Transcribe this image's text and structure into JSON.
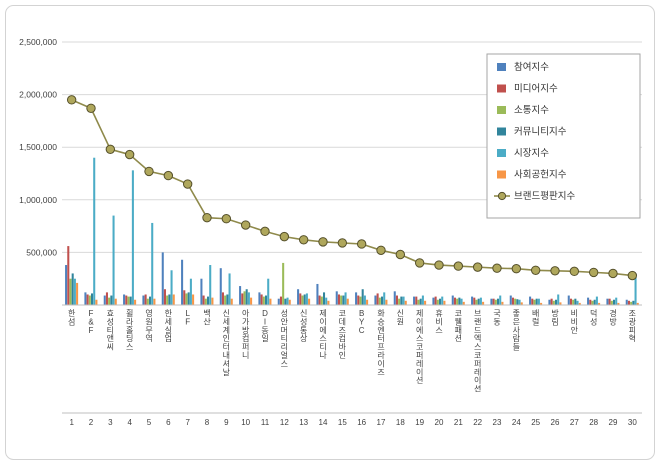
{
  "chart_data": {
    "type": "bar",
    "title": "",
    "categories": [
      "한섬",
      "F&F",
      "효성티앤씨",
      "휠라홀딩스",
      "영원무역",
      "한세실업",
      "LF",
      "백산",
      "신세계인터내셔날",
      "아가방컴퍼니",
      "DI동일",
      "성안머티리얼스",
      "신성통상",
      "제이에스티나",
      "코데즈컴바인",
      "BYC",
      "화승엔터프라이즈",
      "신원",
      "제이에스코퍼레이션",
      "휴비스",
      "코웰패션",
      "브랜드엑스코퍼레이션",
      "국동",
      "좋은사람들",
      "배럴",
      "방림",
      "비비안",
      "덕성",
      "경방",
      "조광피혁"
    ],
    "rank_labels": [
      "1",
      "2",
      "3",
      "4",
      "5",
      "6",
      "7",
      "8",
      "9",
      "10",
      "11",
      "12",
      "13",
      "14",
      "15",
      "16",
      "17",
      "18",
      "19",
      "20",
      "21",
      "22",
      "23",
      "24",
      "25",
      "26",
      "27",
      "28",
      "29",
      "30"
    ],
    "y_ticks": [
      {
        "value": 2500000,
        "label": "2,500,000"
      },
      {
        "value": 2000000,
        "label": "2,000,000"
      },
      {
        "value": 1500000,
        "label": "1,500,000"
      },
      {
        "value": 1000000,
        "label": "1,000,000"
      },
      {
        "value": 500000,
        "label": "500,000"
      }
    ],
    "ylim": [
      0,
      2500000
    ],
    "grid": true,
    "legend_position": "right-top",
    "series": [
      {
        "name": "참여지수",
        "color": "#4F81BD",
        "values": [
          380000,
          120000,
          90000,
          100000,
          90000,
          500000,
          430000,
          250000,
          350000,
          180000,
          120000,
          60000,
          150000,
          200000,
          130000,
          120000,
          90000,
          130000,
          80000,
          70000,
          90000,
          80000,
          60000,
          90000,
          80000,
          50000,
          90000,
          70000,
          60000,
          50000
        ]
      },
      {
        "name": "미디어지수",
        "color": "#C0504D",
        "values": [
          560000,
          100000,
          120000,
          90000,
          100000,
          150000,
          140000,
          90000,
          120000,
          110000,
          100000,
          80000,
          110000,
          90000,
          100000,
          90000,
          110000,
          90000,
          80000,
          80000,
          70000,
          70000,
          60000,
          70000,
          60000,
          60000,
          60000,
          50000,
          60000,
          40000
        ]
      },
      {
        "name": "소통지수",
        "color": "#9BBB59",
        "values": [
          250000,
          90000,
          70000,
          80000,
          60000,
          90000,
          110000,
          60000,
          90000,
          130000,
          80000,
          400000,
          90000,
          80000,
          90000,
          80000,
          70000,
          60000,
          50000,
          50000,
          60000,
          50000,
          50000,
          60000,
          50000,
          40000,
          50000,
          40000,
          40000,
          30000
        ]
      },
      {
        "name": "커뮤니티지수",
        "color": "#31859C",
        "values": [
          300000,
          110000,
          90000,
          80000,
          80000,
          100000,
          120000,
          80000,
          100000,
          150000,
          90000,
          60000,
          100000,
          120000,
          90000,
          150000,
          80000,
          80000,
          60000,
          60000,
          70000,
          60000,
          60000,
          55000,
          60000,
          50000,
          60000,
          50000,
          50000,
          40000
        ]
      },
      {
        "name": "시장지수",
        "color": "#4BACC6",
        "values": [
          250000,
          1400000,
          850000,
          1280000,
          780000,
          330000,
          250000,
          380000,
          300000,
          120000,
          250000,
          70000,
          110000,
          70000,
          120000,
          90000,
          120000,
          80000,
          90000,
          80000,
          60000,
          70000,
          90000,
          50000,
          60000,
          100000,
          40000,
          80000,
          70000,
          300000
        ]
      },
      {
        "name": "사회공헌지수",
        "color": "#F79646",
        "values": [
          210000,
          50000,
          60000,
          50000,
          60000,
          100000,
          100000,
          70000,
          60000,
          70000,
          60000,
          50000,
          60000,
          40000,
          60000,
          50000,
          50000,
          40000,
          40000,
          40000,
          30000,
          30000,
          30000,
          25000,
          20000,
          25000,
          20000,
          20000,
          20000,
          20000
        ]
      }
    ],
    "line_series": {
      "name": "브랜드평판지수",
      "color": "#8F8A4B",
      "marker_fill": "#AFA75C",
      "marker_stroke": "#55502B",
      "values": [
        1950000,
        1870000,
        1480000,
        1430000,
        1270000,
        1230000,
        1150000,
        830000,
        820000,
        760000,
        700000,
        650000,
        620000,
        600000,
        590000,
        580000,
        520000,
        480000,
        400000,
        380000,
        370000,
        360000,
        350000,
        345000,
        330000,
        325000,
        320000,
        310000,
        300000,
        280000
      ]
    }
  }
}
